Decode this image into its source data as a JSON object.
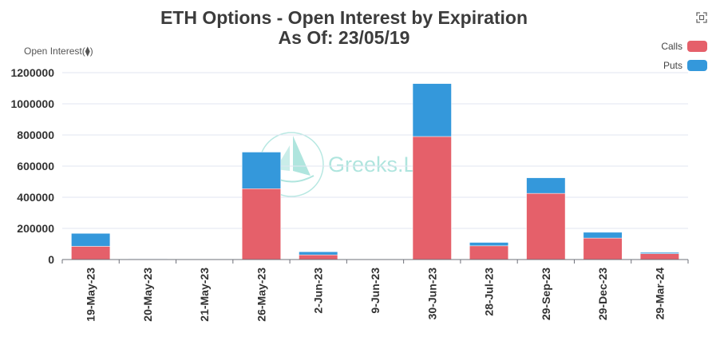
{
  "title_lines": [
    "ETH Options - Open Interest by Expiration",
    "As Of: 23/05/19"
  ],
  "watermark": "Greeks.Live",
  "toolbox": {
    "icon": "fullscreen-icon"
  },
  "colors": {
    "calls": "#e5606a",
    "puts": "#3498db",
    "axis": "#6e7079",
    "grid": "#e0e6f1"
  },
  "chart_data": {
    "type": "bar",
    "stacked": true,
    "title": "ETH Options - Open Interest by Expiration",
    "subtitle": "As Of: 23/05/19",
    "xlabel": "",
    "ylabel": "Open Interest(⧫)",
    "ylim": [
      0,
      1200000
    ],
    "yticks": [
      0,
      200000,
      400000,
      600000,
      800000,
      1000000,
      1200000
    ],
    "yticklabels": [
      "0",
      "200000",
      "400000",
      "600000",
      "800000",
      "1000000",
      "1200000"
    ],
    "grid": true,
    "legend_position": "top-right",
    "categories": [
      "19-May-23",
      "20-May-23",
      "21-May-23",
      "26-May-23",
      "2-Jun-23",
      "9-Jun-23",
      "30-Jun-23",
      "28-Jul-23",
      "29-Sep-23",
      "29-Dec-23",
      "29-Mar-24"
    ],
    "series": [
      {
        "name": "Calls",
        "values": [
          85000,
          4000,
          500,
          455000,
          30000,
          3000,
          790000,
          88000,
          425000,
          138000,
          38000
        ]
      },
      {
        "name": "Puts",
        "values": [
          83000,
          2000,
          300,
          235000,
          20000,
          2000,
          340000,
          22000,
          100000,
          37000,
          8000
        ]
      }
    ]
  }
}
